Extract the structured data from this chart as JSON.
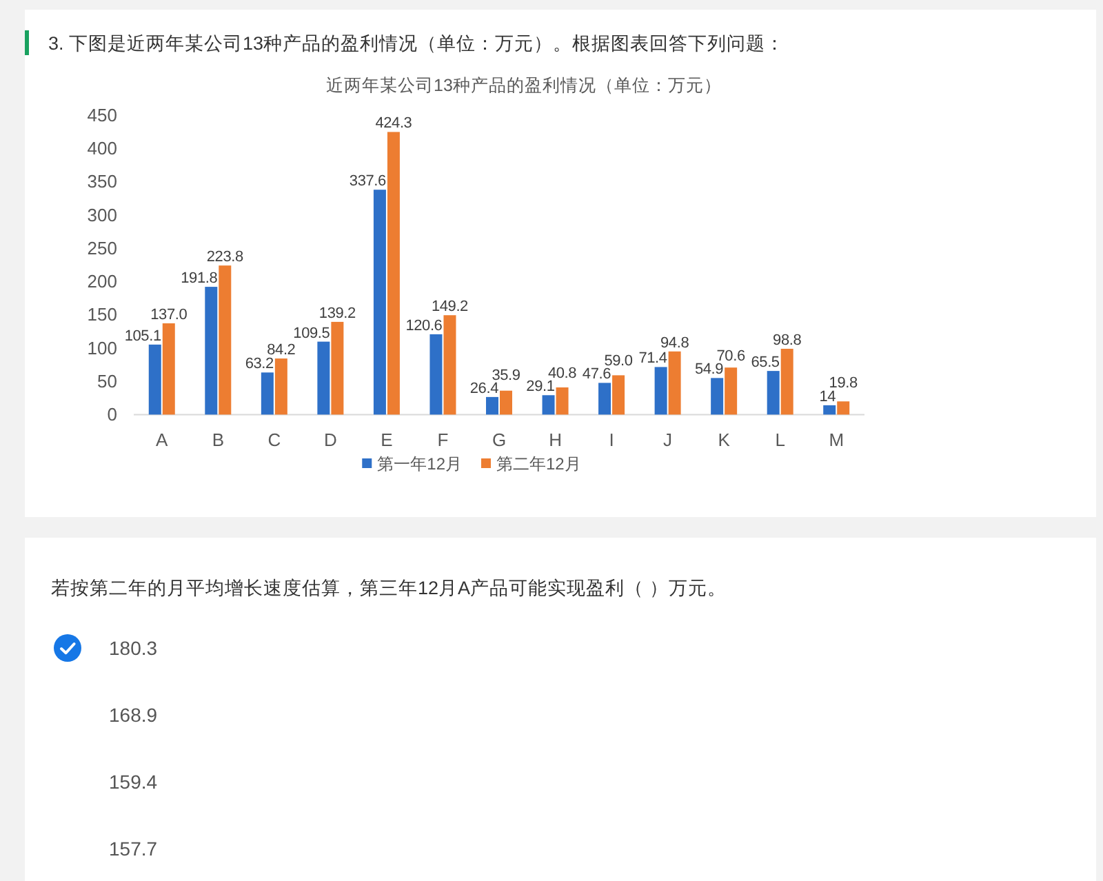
{
  "chart_data": {
    "type": "bar",
    "title": "近两年某公司13种产品的盈利情况（单位：万元）",
    "categories": [
      "A",
      "B",
      "C",
      "D",
      "E",
      "F",
      "G",
      "H",
      "I",
      "J",
      "K",
      "L",
      "M"
    ],
    "series": [
      {
        "name": "第一年12月",
        "color": "#2e70c8",
        "values": [
          105.1,
          191.8,
          63.2,
          109.5,
          337.6,
          120.6,
          26.4,
          29.1,
          47.6,
          71.4,
          54.9,
          65.5,
          14
        ],
        "value_labels": [
          "105.1",
          "191.8",
          "63.2",
          "109.5",
          "337.6",
          "120.6",
          "26.4",
          "29.1",
          "47.6",
          "71.4",
          "54.9",
          "65.5",
          "14"
        ]
      },
      {
        "name": "第二年12月",
        "color": "#ed7d31",
        "values": [
          137.0,
          223.8,
          84.2,
          139.2,
          424.3,
          149.2,
          35.9,
          40.8,
          59.0,
          94.8,
          70.6,
          98.8,
          19.8
        ],
        "value_labels": [
          "137.0",
          "223.8",
          "84.2",
          "139.2",
          "424.3",
          "149.2",
          "35.9",
          "40.8",
          "59.0",
          "94.8",
          "70.6",
          "98.8",
          "19.8"
        ]
      }
    ],
    "ylim": [
      0,
      450
    ],
    "yticks": [
      0,
      50,
      100,
      150,
      200,
      250,
      300,
      350,
      400,
      450
    ],
    "legend": "bottom",
    "annotations": [
      "3. 下图是近两年某公司13种产品的盈利情况（单位：万元）。根据图表回答下列问题：",
      "若按第二年的月平均增长速度估算，第三年12月A产品可能实现盈利（ ）万元。",
      "180.3",
      "168.9",
      "159.4",
      "157.7"
    ]
  }
}
